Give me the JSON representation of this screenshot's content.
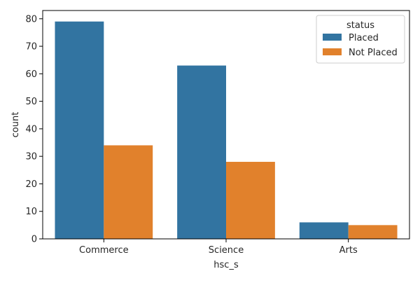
{
  "chart_data": {
    "type": "bar",
    "categories": [
      "Commerce",
      "Science",
      "Arts"
    ],
    "series": [
      {
        "name": "Placed",
        "values": [
          79,
          63,
          6
        ],
        "color": "#3274a1"
      },
      {
        "name": "Not Placed",
        "values": [
          34,
          28,
          5
        ],
        "color": "#e1812c"
      }
    ],
    "xlabel": "hsc_s",
    "ylabel": "count",
    "ylim": [
      0,
      83
    ],
    "yticks": [
      0,
      10,
      20,
      30,
      40,
      50,
      60,
      70,
      80
    ],
    "legend": {
      "title": "status",
      "placement": "top-right"
    },
    "grid": false
  }
}
